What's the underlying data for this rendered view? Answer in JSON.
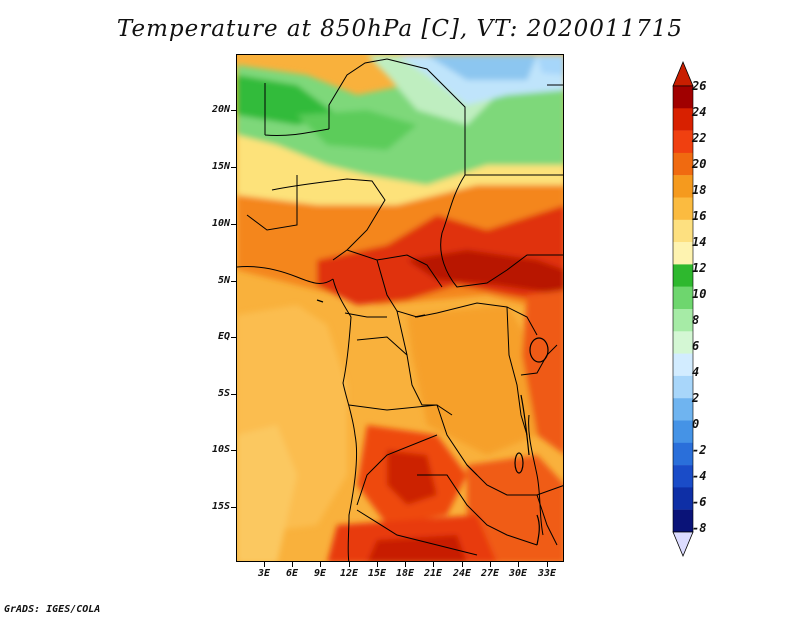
{
  "title": "Temperature at 850hPa [C], VT: 2020011715",
  "footer": "GrADS: IGES/COLA",
  "axes": {
    "lat_labels": [
      "20N",
      "15N",
      "10N",
      "5N",
      "EQ",
      "5S",
      "10S",
      "15S"
    ],
    "lon_labels": [
      "3E",
      "6E",
      "9E",
      "12E",
      "15E",
      "18E",
      "21E",
      "24E",
      "27E",
      "30E",
      "33E"
    ]
  },
  "colorbar": {
    "labels": [
      "26",
      "24",
      "22",
      "20",
      "18",
      "16",
      "14",
      "12",
      "10",
      "8",
      "6",
      "4",
      "2",
      "0",
      "-2",
      "-4",
      "-6",
      "-8"
    ],
    "colors": [
      "#a00000",
      "#d82000",
      "#f04010",
      "#f06a10",
      "#f59a1e",
      "#fbbb40",
      "#fde080",
      "#fef3b0",
      "#2eb82e",
      "#6ed66e",
      "#a6eba6",
      "#d4f7d4",
      "#d2ecff",
      "#a8d6fa",
      "#6fb4f0",
      "#4593e6",
      "#2a6fda",
      "#1a4cc8",
      "#0e2fa6",
      "#0a1378",
      "#dcdcff"
    ],
    "upper_extension_color": "#c81e00",
    "lower_extension_color": "#dcdcff"
  }
}
